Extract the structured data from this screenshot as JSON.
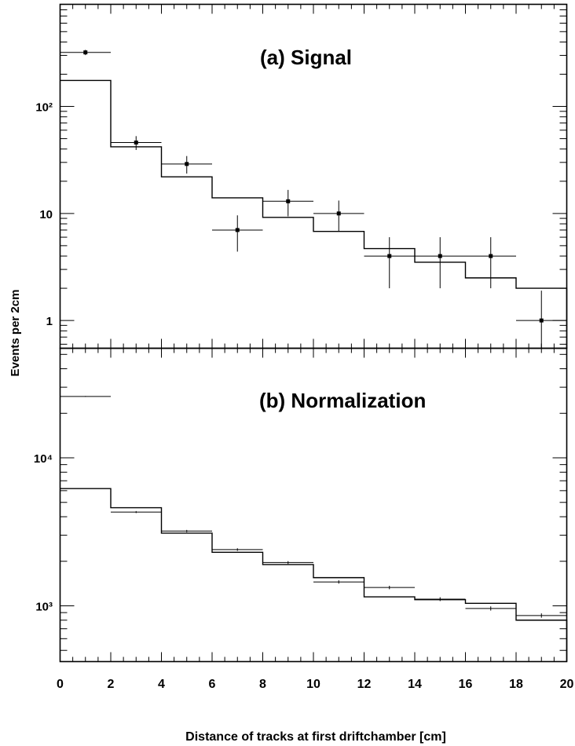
{
  "chart_data": {
    "type": "histogram",
    "xlabel": "Distance of tracks at first driftchamber  [cm]",
    "ylabel": "Events per 2cm",
    "xlim": [
      0,
      20
    ],
    "x_ticks": [
      "0",
      "2",
      "4",
      "6",
      "8",
      "10",
      "12",
      "14",
      "16",
      "18",
      "20"
    ],
    "bin_edges": [
      0,
      2,
      4,
      6,
      8,
      10,
      12,
      14,
      16,
      18,
      20
    ],
    "bin_centers": [
      1,
      3,
      5,
      7,
      9,
      11,
      13,
      15,
      17,
      19
    ],
    "panels": [
      {
        "title": "(a) Signal",
        "y_scale": "log",
        "ylim": [
          0.55,
          900
        ],
        "y_ticks": [
          "1",
          "10",
          "10²"
        ],
        "histogram": [
          175,
          42,
          22,
          14,
          9.2,
          6.8,
          4.7,
          3.5,
          2.5,
          2.0
        ],
        "points": [
          320,
          46,
          29,
          7,
          13,
          10,
          4,
          4,
          4,
          1
        ],
        "errors_low": [
          18,
          6.8,
          5.4,
          2.6,
          3.6,
          3.2,
          2.0,
          2.0,
          2.0,
          0.9
        ],
        "errors_high": [
          18,
          6.8,
          5.4,
          2.6,
          3.6,
          3.2,
          2.0,
          2.0,
          2.0,
          0.9
        ]
      },
      {
        "title": "(b) Normalization",
        "y_scale": "log",
        "ylim": [
          420,
          55000
        ],
        "y_ticks": [
          "10³",
          "10⁴"
        ],
        "histogram": [
          6200,
          4600,
          3100,
          2300,
          1900,
          1550,
          1150,
          1100,
          1040,
          800
        ],
        "points": [
          26000,
          4300,
          3200,
          2400,
          1960,
          1450,
          1330,
          1110,
          960,
          860
        ],
        "errors_low": [
          160,
          66,
          57,
          49,
          44,
          38,
          36,
          33,
          31,
          29
        ],
        "errors_high": [
          160,
          66,
          57,
          49,
          44,
          38,
          36,
          33,
          31,
          29
        ]
      }
    ]
  }
}
